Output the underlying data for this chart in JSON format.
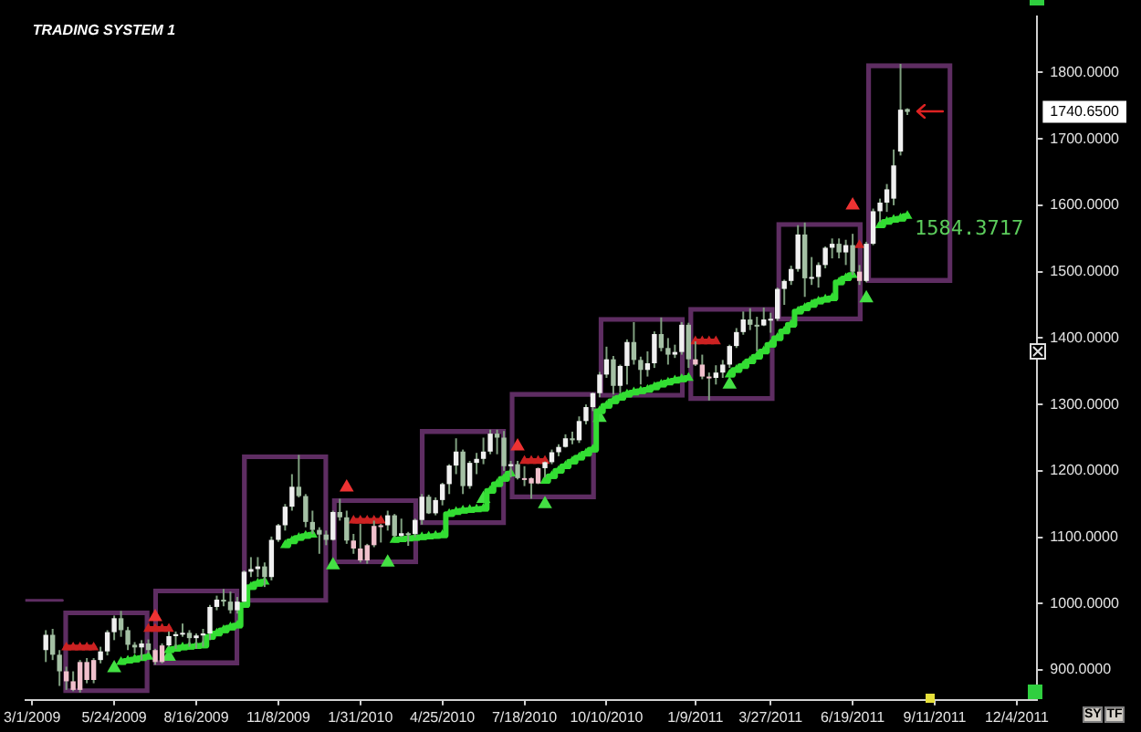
{
  "chart_data": {
    "type": "candlestick",
    "title": "TRADING SYSTEM 1",
    "x": [
      "2009-03-15",
      "2009-03-22",
      "2009-03-29",
      "2009-04-05",
      "2009-04-12",
      "2009-04-19",
      "2009-04-26",
      "2009-05-03",
      "2009-05-10",
      "2009-05-17",
      "2009-05-24",
      "2009-05-31",
      "2009-06-07",
      "2009-06-14",
      "2009-06-21",
      "2009-06-28",
      "2009-07-05",
      "2009-07-12",
      "2009-07-19",
      "2009-07-26",
      "2009-08-02",
      "2009-08-09",
      "2009-08-16",
      "2009-08-23",
      "2009-08-30",
      "2009-09-06",
      "2009-09-13",
      "2009-09-20",
      "2009-09-27",
      "2009-10-04",
      "2009-10-11",
      "2009-10-18",
      "2009-10-25",
      "2009-11-01",
      "2009-11-08",
      "2009-11-15",
      "2009-11-22",
      "2009-11-29",
      "2009-12-06",
      "2009-12-13",
      "2009-12-20",
      "2009-12-27",
      "2010-01-03",
      "2010-01-10",
      "2010-01-17",
      "2010-01-24",
      "2010-01-31",
      "2010-02-07",
      "2010-02-14",
      "2010-02-21",
      "2010-02-28",
      "2010-03-07",
      "2010-03-14",
      "2010-03-21",
      "2010-03-28",
      "2010-04-04",
      "2010-04-11",
      "2010-04-18",
      "2010-04-25",
      "2010-05-02",
      "2010-05-09",
      "2010-05-16",
      "2010-05-23",
      "2010-05-30",
      "2010-06-06",
      "2010-06-13",
      "2010-06-20",
      "2010-06-27",
      "2010-07-04",
      "2010-07-11",
      "2010-07-18",
      "2010-07-25",
      "2010-08-01",
      "2010-08-08",
      "2010-08-15",
      "2010-08-22",
      "2010-08-29",
      "2010-09-05",
      "2010-09-12",
      "2010-09-19",
      "2010-09-26",
      "2010-10-03",
      "2010-10-10",
      "2010-10-17",
      "2010-10-24",
      "2010-10-31",
      "2010-11-07",
      "2010-11-14",
      "2010-11-21",
      "2010-11-28",
      "2010-12-05",
      "2010-12-12",
      "2010-12-19",
      "2010-12-26",
      "2011-01-02",
      "2011-01-09",
      "2011-01-16",
      "2011-01-23",
      "2011-01-30",
      "2011-02-06",
      "2011-02-13",
      "2011-02-20",
      "2011-02-27",
      "2011-03-06",
      "2011-03-13",
      "2011-03-20",
      "2011-03-27",
      "2011-04-03",
      "2011-04-10",
      "2011-04-17",
      "2011-04-24",
      "2011-05-01",
      "2011-05-08",
      "2011-05-15",
      "2011-05-22",
      "2011-05-29",
      "2011-06-05",
      "2011-06-12",
      "2011-06-19",
      "2011-06-26",
      "2011-07-03",
      "2011-07-10",
      "2011-07-17",
      "2011-07-24",
      "2011-07-31",
      "2011-08-07",
      "2011-08-14"
    ],
    "ohlc": [
      [
        930,
        960,
        912,
        953
      ],
      [
        953,
        962,
        915,
        923
      ],
      [
        923,
        930,
        876,
        898
      ],
      [
        898,
        905,
        870,
        883
      ],
      [
        883,
        898,
        868,
        870
      ],
      [
        870,
        915,
        866,
        912
      ],
      [
        912,
        918,
        880,
        885
      ],
      [
        885,
        918,
        880,
        915
      ],
      [
        915,
        935,
        910,
        928
      ],
      [
        928,
        960,
        922,
        957
      ],
      [
        957,
        982,
        945,
        978
      ],
      [
        978,
        989,
        950,
        960
      ],
      [
        960,
        965,
        930,
        938
      ],
      [
        938,
        942,
        925,
        934
      ],
      [
        934,
        945,
        915,
        940
      ],
      [
        940,
        946,
        925,
        930
      ],
      [
        930,
        932,
        908,
        912
      ],
      [
        912,
        940,
        910,
        937
      ],
      [
        937,
        958,
        935,
        951
      ],
      [
        951,
        958,
        932,
        954
      ],
      [
        954,
        970,
        950,
        956
      ],
      [
        956,
        960,
        935,
        948
      ],
      [
        948,
        955,
        932,
        952
      ],
      [
        952,
        962,
        935,
        955
      ],
      [
        955,
        998,
        945,
        995
      ],
      [
        995,
        1012,
        990,
        1006
      ],
      [
        1006,
        1022,
        996,
        1003
      ],
      [
        1003,
        1018,
        985,
        990
      ],
      [
        990,
        1010,
        985,
        1003
      ],
      [
        1003,
        1050,
        1002,
        1048
      ],
      [
        1048,
        1070,
        1040,
        1052
      ],
      [
        1052,
        1070,
        1040,
        1056
      ],
      [
        1056,
        1062,
        1025,
        1040
      ],
      [
        1040,
        1101,
        1035,
        1096
      ],
      [
        1096,
        1120,
        1093,
        1118
      ],
      [
        1118,
        1150,
        1110,
        1146
      ],
      [
        1146,
        1195,
        1140,
        1176
      ],
      [
        1176,
        1224,
        1160,
        1162
      ],
      [
        1162,
        1165,
        1115,
        1123
      ],
      [
        1123,
        1140,
        1105,
        1111
      ],
      [
        1111,
        1115,
        1075,
        1104
      ],
      [
        1104,
        1110,
        1088,
        1096
      ],
      [
        1096,
        1140,
        1095,
        1138
      ],
      [
        1138,
        1158,
        1125,
        1130
      ],
      [
        1130,
        1140,
        1090,
        1095
      ],
      [
        1095,
        1105,
        1075,
        1083
      ],
      [
        1083,
        1120,
        1062,
        1065
      ],
      [
        1065,
        1090,
        1060,
        1088
      ],
      [
        1088,
        1125,
        1085,
        1117
      ],
      [
        1117,
        1120,
        1092,
        1118
      ],
      [
        1118,
        1140,
        1110,
        1133
      ],
      [
        1133,
        1135,
        1100,
        1102
      ],
      [
        1102,
        1128,
        1100,
        1106
      ],
      [
        1106,
        1108,
        1087,
        1105
      ],
      [
        1105,
        1128,
        1100,
        1126
      ],
      [
        1126,
        1165,
        1119,
        1161
      ],
      [
        1161,
        1164,
        1135,
        1136
      ],
      [
        1136,
        1160,
        1133,
        1156
      ],
      [
        1156,
        1182,
        1148,
        1180
      ],
      [
        1180,
        1210,
        1165,
        1208
      ],
      [
        1208,
        1249,
        1195,
        1229
      ],
      [
        1229,
        1232,
        1165,
        1177
      ],
      [
        1177,
        1215,
        1173,
        1212
      ],
      [
        1212,
        1227,
        1195,
        1218
      ],
      [
        1218,
        1250,
        1210,
        1229
      ],
      [
        1229,
        1262,
        1225,
        1256
      ],
      [
        1256,
        1262,
        1225,
        1250
      ],
      [
        1250,
        1260,
        1200,
        1207
      ],
      [
        1207,
        1215,
        1190,
        1210
      ],
      [
        1210,
        1215,
        1187,
        1189
      ],
      [
        1189,
        1207,
        1177,
        1189
      ],
      [
        1189,
        1190,
        1158,
        1181
      ],
      [
        1181,
        1205,
        1180,
        1204
      ],
      [
        1204,
        1214,
        1190,
        1213
      ],
      [
        1213,
        1232,
        1210,
        1228
      ],
      [
        1228,
        1240,
        1222,
        1236
      ],
      [
        1236,
        1255,
        1235,
        1249
      ],
      [
        1249,
        1259,
        1240,
        1246
      ],
      [
        1246,
        1282,
        1242,
        1275
      ],
      [
        1275,
        1300,
        1270,
        1296
      ],
      [
        1296,
        1318,
        1290,
        1317
      ],
      [
        1317,
        1349,
        1311,
        1345
      ],
      [
        1345,
        1387,
        1340,
        1368
      ],
      [
        1368,
        1373,
        1315,
        1328
      ],
      [
        1328,
        1360,
        1318,
        1358
      ],
      [
        1358,
        1398,
        1330,
        1394
      ],
      [
        1394,
        1424,
        1360,
        1367
      ],
      [
        1367,
        1372,
        1330,
        1352
      ],
      [
        1352,
        1380,
        1342,
        1362
      ],
      [
        1362,
        1410,
        1355,
        1406
      ],
      [
        1406,
        1431,
        1380,
        1385
      ],
      [
        1385,
        1400,
        1360,
        1375
      ],
      [
        1375,
        1390,
        1370,
        1379
      ],
      [
        1379,
        1424,
        1375,
        1420
      ],
      [
        1420,
        1423,
        1355,
        1368
      ],
      [
        1368,
        1395,
        1358,
        1360
      ],
      [
        1360,
        1375,
        1338,
        1342
      ],
      [
        1342,
        1348,
        1306,
        1340
      ],
      [
        1340,
        1359,
        1330,
        1348
      ],
      [
        1348,
        1367,
        1340,
        1360
      ],
      [
        1360,
        1390,
        1355,
        1388
      ],
      [
        1388,
        1415,
        1385,
        1409
      ],
      [
        1409,
        1440,
        1405,
        1428
      ],
      [
        1428,
        1445,
        1412,
        1420
      ],
      [
        1420,
        1432,
        1380,
        1419
      ],
      [
        1419,
        1446,
        1418,
        1428
      ],
      [
        1428,
        1438,
        1408,
        1429
      ],
      [
        1429,
        1476,
        1426,
        1474
      ],
      [
        1474,
        1488,
        1450,
        1486
      ],
      [
        1486,
        1509,
        1480,
        1504
      ],
      [
        1504,
        1570,
        1500,
        1556
      ],
      [
        1556,
        1574,
        1462,
        1490
      ],
      [
        1490,
        1522,
        1480,
        1492
      ],
      [
        1492,
        1514,
        1476,
        1510
      ],
      [
        1510,
        1538,
        1505,
        1536
      ],
      [
        1536,
        1550,
        1520,
        1542
      ],
      [
        1542,
        1550,
        1520,
        1529
      ],
      [
        1529,
        1548,
        1510,
        1540
      ],
      [
        1540,
        1557,
        1495,
        1500
      ],
      [
        1500,
        1510,
        1480,
        1486
      ],
      [
        1486,
        1545,
        1484,
        1542
      ],
      [
        1542,
        1595,
        1540,
        1591
      ],
      [
        1591,
        1610,
        1575,
        1604
      ],
      [
        1604,
        1632,
        1590,
        1624
      ],
      [
        1610,
        1684,
        1600,
        1660
      ],
      [
        1681,
        1813,
        1675,
        1744
      ],
      [
        1745,
        1746,
        1736,
        1740.65
      ]
    ],
    "colors": [
      "#f0f0f0",
      "#a4c0a4",
      "#a4c0a4",
      "#f0c0cc",
      "#f0c0cc",
      "#f0c0cc",
      "#f0c0cc",
      "#f0c0cc",
      "#f0f0f0",
      "#f0f0f0",
      "#f0f0f0",
      "#a4c0a4",
      "#a4c0a4",
      "#a4c0a4",
      "#f0f0f0",
      "#a4c0a4",
      "#f0c0cc",
      "#f0c0cc",
      "#f0f0f0",
      "#f0f0f0",
      "#f0f0f0",
      "#a4c0a4",
      "#f0f0f0",
      "#f0f0f0",
      "#f0f0f0",
      "#f0f0f0",
      "#a4c0a4",
      "#a4c0a4",
      "#f0f0f0",
      "#f0f0f0",
      "#f0f0f0",
      "#f0f0f0",
      "#a4c0a4",
      "#f0f0f0",
      "#f0f0f0",
      "#f0f0f0",
      "#f0f0f0",
      "#a4c0a4",
      "#a4c0a4",
      "#a4c0a4",
      "#a4c0a4",
      "#a4c0a4",
      "#f0f0f0",
      "#a4c0a4",
      "#a4c0a4",
      "#f0c0cc",
      "#f0c0cc",
      "#f0c0cc",
      "#f0c0cc",
      "#f0c0cc",
      "#f0f0f0",
      "#a4c0a4",
      "#f0f0f0",
      "#a4c0a4",
      "#f0f0f0",
      "#f0f0f0",
      "#a4c0a4",
      "#f0f0f0",
      "#f0f0f0",
      "#f0f0f0",
      "#f0f0f0",
      "#a4c0a4",
      "#f0f0f0",
      "#f0f0f0",
      "#f0f0f0",
      "#f0f0f0",
      "#a4c0a4",
      "#a4c0a4",
      "#f0f0f0",
      "#a4c0a4",
      "#f0c0cc",
      "#f0c0cc",
      "#f0c0cc",
      "#f0f0f0",
      "#f0f0f0",
      "#f0f0f0",
      "#f0f0f0",
      "#a4c0a4",
      "#f0f0f0",
      "#f0f0f0",
      "#f0f0f0",
      "#f0f0f0",
      "#f0f0f0",
      "#a4c0a4",
      "#f0f0f0",
      "#f0f0f0",
      "#a4c0a4",
      "#a4c0a4",
      "#f0f0f0",
      "#f0f0f0",
      "#a4c0a4",
      "#a4c0a4",
      "#f0f0f0",
      "#f0f0f0",
      "#a4c0a4",
      "#f0c0cc",
      "#f0c0cc",
      "#f0c0cc",
      "#f0f0f0",
      "#f0f0f0",
      "#f0f0f0",
      "#f0f0f0",
      "#f0f0f0",
      "#a4c0a4",
      "#a4c0a4",
      "#f0f0f0",
      "#f0f0f0",
      "#f0f0f0",
      "#f0f0f0",
      "#f0f0f0",
      "#f0f0f0",
      "#a4c0a4",
      "#f0f0f0",
      "#f0f0f0",
      "#f0f0f0",
      "#f0f0f0",
      "#a4c0a4",
      "#f0f0f0",
      "#a4c0a4",
      "#f0c0cc",
      "#f0f0f0",
      "#f0f0f0",
      "#f0f0f0",
      "#f0f0f0",
      "#f0f0f0",
      "#f0f0f0",
      "#a4c0a4"
    ],
    "color": "#7f9f7f",
    "series": [
      {
        "type": "bar",
        "color": "#5e2d62",
        "x": [
          "2009-05-16",
          "2009-08-16",
          "2009-11-15",
          "2010-02-15",
          "2010-05-16",
          "2010-08-16",
          "2010-11-15",
          "2011-02-15",
          "2011-05-16",
          "2011-08-16"
        ],
        "base": [
          866,
          908,
          1002,
          1060,
          1119,
          1158,
          1311,
          1306,
          1426,
          1484
        ],
        "values": [
          123,
          114,
          222,
          98,
          143,
          160,
          120,
          140,
          148,
          329
        ]
      },
      {
        "type": "line",
        "color": "#5e2d62",
        "marker": "none",
        "x": [
          "2009-02-22",
          "2009-04-01"
        ],
        "values": [
          1005,
          1005
        ]
      },
      {
        "type": "step",
        "color": "#33dd33",
        "marker": "triangle",
        "x": [
          "2009-05-31",
          "2009-06-07",
          "2009-06-14",
          "2009-06-21",
          "2009-06-28",
          "2009-07-05",
          "2009-07-19",
          "2009-07-26",
          "2009-08-02",
          "2009-08-09",
          "2009-08-16",
          "2009-08-23",
          "2009-08-30",
          "2009-09-06",
          "2009-09-13",
          "2009-09-20",
          "2009-09-27",
          "2009-10-04",
          "2009-10-11",
          "2009-10-18",
          "2009-10-25",
          "2009-11-01",
          "2009-11-15",
          "2009-11-22",
          "2009-11-29",
          "2009-12-06",
          "2009-12-13",
          "2009-12-20",
          "2010-03-07",
          "2010-03-14",
          "2010-03-21",
          "2010-03-28",
          "2010-04-04",
          "2010-04-11",
          "2010-04-18",
          "2010-04-25",
          "2010-05-02",
          "2010-05-09",
          "2010-05-16",
          "2010-05-23",
          "2010-05-30",
          "2010-06-06",
          "2010-06-13",
          "2010-06-20",
          "2010-06-27",
          "2010-07-04",
          "2010-07-11",
          "2010-08-08",
          "2010-08-15",
          "2010-08-22",
          "2010-08-29",
          "2010-09-05",
          "2010-09-12",
          "2010-09-19",
          "2010-09-26",
          "2010-10-03",
          "2010-10-10",
          "2010-10-17",
          "2010-10-24",
          "2010-10-31",
          "2010-11-07",
          "2010-11-14",
          "2010-11-21",
          "2010-11-28",
          "2010-12-05",
          "2010-12-12",
          "2010-12-19",
          "2010-12-26",
          "2011-01-02",
          "2011-01-09",
          "2011-02-13",
          "2011-02-20",
          "2011-02-27",
          "2011-03-06",
          "2011-03-13",
          "2011-03-20",
          "2011-03-27",
          "2011-04-03",
          "2011-04-10",
          "2011-04-17",
          "2011-04-24",
          "2011-05-01",
          "2011-05-08",
          "2011-05-15",
          "2011-05-22",
          "2011-05-29",
          "2011-06-05",
          "2011-06-12",
          "2011-06-19",
          "2011-06-26",
          "2011-07-17",
          "2011-07-24",
          "2011-07-31",
          "2011-08-07",
          "2011-08-14"
        ],
        "values": [
          912,
          914,
          916,
          918,
          920,
          null,
          930,
          932,
          934,
          935,
          936,
          937,
          950,
          955,
          960,
          964,
          967,
          998,
          1025,
          1030,
          1033,
          null,
          1088,
          1094,
          1099,
          1102,
          1104,
          null,
          1096,
          1097,
          1098,
          1099,
          1100,
          1101,
          1102,
          1103,
          1135,
          1138,
          1140,
          1141,
          1142,
          1143,
          1170,
          1180,
          1188,
          1196,
          null,
          1185,
          1192,
          1200,
          1207,
          1214,
          1220,
          1226,
          1232,
          1290,
          1298,
          1305,
          1310,
          1315,
          1318,
          1320,
          1322,
          1326,
          1330,
          1333,
          1336,
          1338,
          1340,
          null,
          1345,
          1352,
          1358,
          1365,
          1372,
          1380,
          1390,
          1400,
          1410,
          1420,
          1440,
          1445,
          1450,
          1455,
          1458,
          1460,
          1484,
          1490,
          1495,
          null,
          1570,
          1575,
          1578,
          1580,
          1584
        ]
      },
      {
        "type": "step",
        "color": "#cc2222",
        "marker": "triangle",
        "x": [
          "2009-04-05",
          "2009-04-12",
          "2009-04-19",
          "2009-04-26",
          "2009-05-03",
          "2009-05-10",
          "2009-06-28",
          "2009-07-05",
          "2009-07-12",
          "2009-07-19",
          "2009-07-26",
          "2010-01-24",
          "2010-01-31",
          "2010-02-07",
          "2010-02-14",
          "2010-02-21",
          "2010-02-28",
          "2010-07-18",
          "2010-07-25",
          "2010-08-01",
          "2010-08-08",
          "2010-08-15",
          "2011-01-09",
          "2011-01-16",
          "2011-01-23",
          "2011-01-30",
          "2011-02-06",
          "2011-06-26"
        ],
        "values": [
          934,
          934,
          934,
          934,
          934,
          null,
          962,
          962,
          962,
          962,
          null,
          1125,
          1125,
          1125,
          1125,
          1125,
          null,
          1215,
          1215,
          1215,
          1215,
          null,
          1395,
          1395,
          1395,
          1395,
          null,
          1540
        ]
      },
      {
        "type": "scatter",
        "color": "#44e044",
        "marker": "triangle",
        "x": [
          "2009-05-24",
          "2009-07-19",
          "2010-01-03",
          "2010-02-28",
          "2010-06-06",
          "2010-08-08",
          "2010-10-03",
          "2011-02-13",
          "2011-07-03"
        ],
        "values": [
          903,
          920,
          1058,
          1062,
          1158,
          1150,
          1280,
          1330,
          1460
        ]
      },
      {
        "type": "scatter",
        "color": "#ee3333",
        "marker": "triangle",
        "x": [
          "2009-07-05",
          "2010-01-17",
          "2010-07-11",
          "2011-06-19"
        ],
        "values": [
          980,
          1175,
          1237,
          1600
        ]
      }
    ],
    "xlim": [
      "2009-02-22",
      "2011-12-25"
    ],
    "xticks": [
      {
        "value": "2009-03-01",
        "label": "3/1/2009"
      },
      {
        "value": "2009-05-24",
        "label": "5/24/2009"
      },
      {
        "value": "2009-08-16",
        "label": "8/16/2009"
      },
      {
        "value": "2009-11-08",
        "label": "11/8/2009"
      },
      {
        "value": "2010-01-31",
        "label": "1/31/2010"
      },
      {
        "value": "2010-04-25",
        "label": "4/25/2010"
      },
      {
        "value": "2010-07-18",
        "label": "7/18/2010"
      },
      {
        "value": "2010-10-10",
        "label": "10/10/2010"
      },
      {
        "value": "2011-01-09",
        "label": "1/9/2011"
      },
      {
        "value": "2011-03-27",
        "label": "3/27/2011"
      },
      {
        "value": "2011-06-19",
        "label": "6/19/2011"
      },
      {
        "value": "2011-09-11",
        "label": "9/11/2011"
      },
      {
        "value": "2011-12-04",
        "label": "12/4/2011"
      }
    ],
    "ylim": [
      855,
      1885
    ],
    "yticks": [
      {
        "value": 900,
        "label": "900.0000"
      },
      {
        "value": 1000,
        "label": "1000.0000"
      },
      {
        "value": 1100,
        "label": "1100.0000"
      },
      {
        "value": 1200,
        "label": "1200.0000"
      },
      {
        "value": 1300,
        "label": "1300.0000"
      },
      {
        "value": 1400,
        "label": "1400.0000"
      },
      {
        "value": 1500,
        "label": "1500.0000"
      },
      {
        "value": 1600,
        "label": "1600.0000"
      },
      {
        "value": 1700,
        "label": "1700.0000"
      },
      {
        "value": 1800,
        "label": "1800.0000"
      }
    ],
    "annotations": [
      "1740.6500",
      {
        "text": "1584.3717",
        "x": "2011-08-14",
        "y": 1584
      },
      "SY",
      "TF"
    ]
  }
}
